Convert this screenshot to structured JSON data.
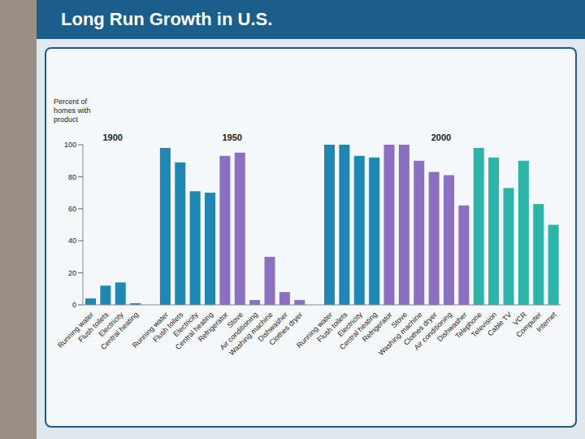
{
  "title": "Long Run Growth in U.S.",
  "chart_data": {
    "type": "bar",
    "y_label": "Percent of homes with product",
    "ylim": [
      0,
      100
    ],
    "yticks": [
      0,
      20,
      40,
      60,
      80,
      100
    ],
    "grid": false,
    "groups": [
      {
        "label": "1900",
        "categories": [
          "Running water",
          "Flush toilets",
          "Electricity",
          "Central heating"
        ],
        "values": [
          4,
          12,
          14,
          1
        ],
        "colors": [
          "#1f87b3",
          "#1f87b3",
          "#1f87b3",
          "#1f87b3"
        ]
      },
      {
        "label": "1950",
        "categories": [
          "Running water",
          "Flush toilets",
          "Electricity",
          "Central heating",
          "Refrigerator",
          "Stove",
          "Air conditioning",
          "Washing machine",
          "Dishwasher",
          "Clothes dryer"
        ],
        "values": [
          98,
          89,
          71,
          70,
          93,
          95,
          3,
          30,
          8,
          3
        ],
        "colors": [
          "#1f87b3",
          "#1f87b3",
          "#1f87b3",
          "#1f87b3",
          "#8b6fc0",
          "#8b6fc0",
          "#8b6fc0",
          "#8b6fc0",
          "#8b6fc0",
          "#8b6fc0"
        ]
      },
      {
        "label": "2000",
        "categories": [
          "Running water",
          "Flush toilets",
          "Electricity",
          "Central heating",
          "Refrigerator",
          "Stove",
          "Washing machine",
          "Clothes dryer",
          "Air conditioning",
          "Dishwasher",
          "Telephone",
          "Television",
          "Cable TV",
          "VCR",
          "Computer",
          "Internet"
        ],
        "values": [
          100,
          100,
          93,
          92,
          100,
          100,
          90,
          83,
          81,
          62,
          98,
          92,
          73,
          90,
          63,
          50
        ],
        "colors": [
          "#1f87b3",
          "#1f87b3",
          "#1f87b3",
          "#1f87b3",
          "#8b6fc0",
          "#8b6fc0",
          "#8b6fc0",
          "#8b6fc0",
          "#8b6fc0",
          "#8b6fc0",
          "#2bb5a8",
          "#2bb5a8",
          "#2bb5a8",
          "#2bb5a8",
          "#2bb5a8",
          "#2bb5a8"
        ]
      }
    ]
  }
}
